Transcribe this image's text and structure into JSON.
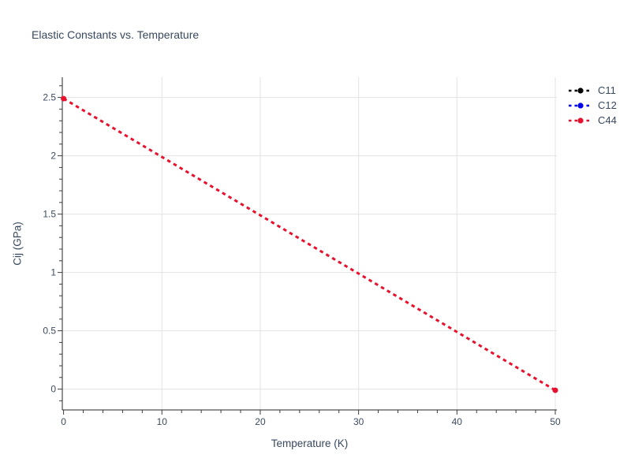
{
  "chart_data": {
    "type": "line",
    "title": "Elastic Constants vs. Temperature",
    "xlabel": "Temperature (K)",
    "ylabel": "Cij (GPa)",
    "xlim": [
      -0.13,
      50.16
    ],
    "ylim": [
      -0.18,
      2.67
    ],
    "x_ticks": [
      0,
      10,
      20,
      30,
      40,
      50
    ],
    "y_ticks": [
      0,
      0.5,
      1,
      1.5,
      2,
      2.5
    ],
    "x_minor_tick_step": 2,
    "y_minor_tick_step": 0.1,
    "grid": true,
    "legend": {
      "position": "top-right-outside",
      "entries": [
        {
          "label": "C11",
          "color": "#000000"
        },
        {
          "label": "C12",
          "color": "#0000ee"
        },
        {
          "label": "C44",
          "color": "#e8112d"
        }
      ]
    },
    "series": [
      {
        "name": "C11",
        "color": "#000000",
        "line_style": "dotted",
        "marker": "circle",
        "points": [],
        "visible_in_plot": false
      },
      {
        "name": "C12",
        "color": "#0000ee",
        "line_style": "dotted",
        "marker": "circle",
        "points": [],
        "visible_in_plot": false
      },
      {
        "name": "C44",
        "color": "#e8112d",
        "line_style": "dotted",
        "marker": "circle",
        "points": [
          [
            0,
            2.49
          ],
          [
            50,
            -0.01
          ]
        ],
        "visible_in_plot": true
      }
    ],
    "colors": {
      "grid": "#e3e3e3",
      "axis": "#262626",
      "tick": "#3c3c3c",
      "text": "#3b4b61"
    }
  }
}
